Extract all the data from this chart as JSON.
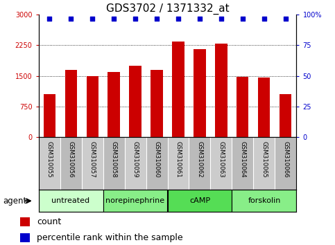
{
  "title": "GDS3702 / 1371332_at",
  "samples": [
    "GSM310055",
    "GSM310056",
    "GSM310057",
    "GSM310058",
    "GSM310059",
    "GSM310060",
    "GSM310061",
    "GSM310062",
    "GSM310063",
    "GSM310064",
    "GSM310065",
    "GSM310066"
  ],
  "bar_values": [
    1050,
    1650,
    1500,
    1600,
    1750,
    1650,
    2350,
    2150,
    2300,
    1480,
    1460,
    1060
  ],
  "percentile_values": [
    97,
    97,
    97,
    97,
    97,
    97,
    97,
    97,
    97,
    97,
    97,
    97
  ],
  "bar_color": "#cc0000",
  "dot_color": "#0000cc",
  "ylim_left": [
    0,
    3000
  ],
  "ylim_right": [
    0,
    100
  ],
  "yticks_left": [
    0,
    750,
    1500,
    2250,
    3000
  ],
  "yticks_right": [
    0,
    25,
    50,
    75,
    100
  ],
  "ytick_labels_right": [
    "0",
    "25",
    "50",
    "75",
    "100%"
  ],
  "groups": [
    {
      "label": "untreated",
      "start": 0,
      "end": 3,
      "color": "#ccffcc"
    },
    {
      "label": "norepinephrine",
      "start": 3,
      "end": 6,
      "color": "#88ee88"
    },
    {
      "label": "cAMP",
      "start": 6,
      "end": 9,
      "color": "#55dd55"
    },
    {
      "label": "forskolin",
      "start": 9,
      "end": 12,
      "color": "#88ee88"
    }
  ],
  "legend_count_label": "count",
  "legend_pct_label": "percentile rank within the sample",
  "agent_label": "agent",
  "tick_area_bg_even": "#cccccc",
  "tick_area_bg_odd": "#bbbbbb",
  "title_fontsize": 11,
  "tick_label_fontsize": 7,
  "legend_fontsize": 9,
  "bar_width": 0.55
}
